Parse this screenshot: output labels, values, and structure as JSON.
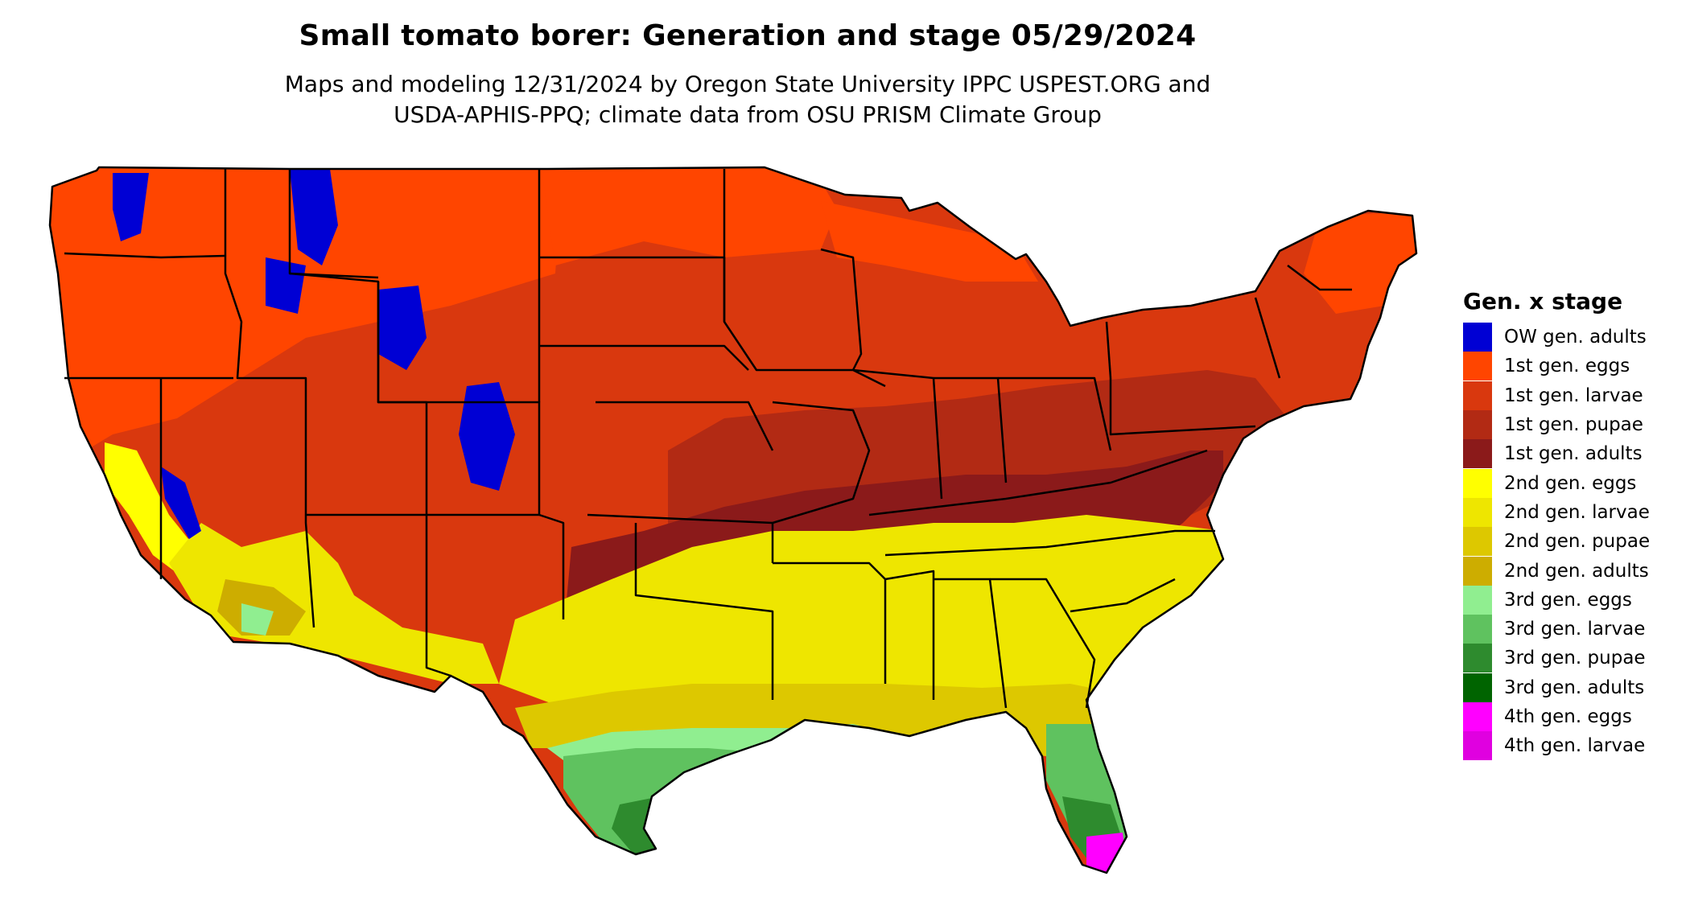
{
  "title": "Small tomato borer: Generation and stage 05/29/2024",
  "subtitle_line1": "Maps and modeling 12/31/2024 by Oregon State University IPPC USPEST.ORG and",
  "subtitle_line2": "USDA-APHIS-PPQ; climate data from OSU PRISM Climate Group",
  "legend": {
    "title": "Gen. x stage",
    "items": [
      {
        "label": "OW gen. adults",
        "color": "#0000d4"
      },
      {
        "label": "1st gen. eggs",
        "color": "#ff4500"
      },
      {
        "label": "1st gen. larvae",
        "color": "#d9380e"
      },
      {
        "label": "1st gen. pupae",
        "color": "#b22a14"
      },
      {
        "label": "1st gen. adults",
        "color": "#8b1a1a"
      },
      {
        "label": "2nd gen. eggs",
        "color": "#ffff00"
      },
      {
        "label": "2nd gen. larvae",
        "color": "#eee600"
      },
      {
        "label": "2nd gen. pupae",
        "color": "#ddc800"
      },
      {
        "label": "2nd gen. adults",
        "color": "#cdad00"
      },
      {
        "label": "3rd gen. eggs",
        "color": "#90ee90"
      },
      {
        "label": "3rd gen. larvae",
        "color": "#5fc25f"
      },
      {
        "label": "3rd gen. pupae",
        "color": "#2e8b2e"
      },
      {
        "label": "3rd gen. adults",
        "color": "#006400"
      },
      {
        "label": "4th gen. eggs",
        "color": "#ff00ff"
      },
      {
        "label": "4th gen. larvae",
        "color": "#e000e0"
      }
    ]
  }
}
